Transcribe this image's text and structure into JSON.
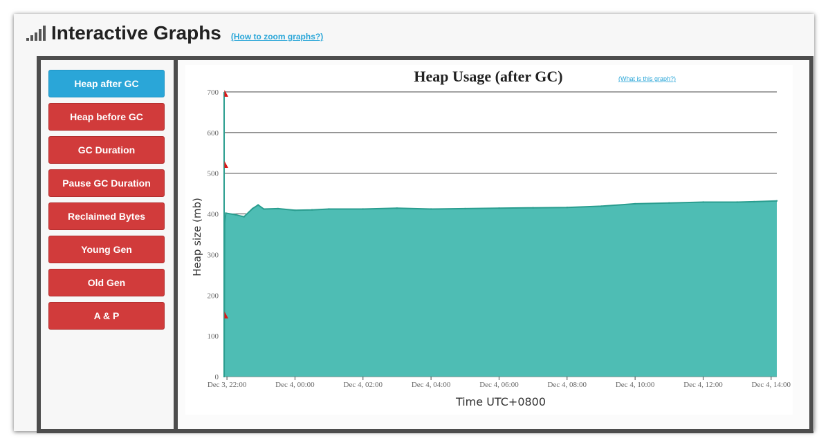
{
  "header": {
    "title": "Interactive Graphs",
    "zoom_help": "(How to zoom graphs?)"
  },
  "sidebar": {
    "items": [
      {
        "label": "Heap after GC",
        "active": true
      },
      {
        "label": "Heap before GC",
        "active": false
      },
      {
        "label": "GC Duration",
        "active": false
      },
      {
        "label": "Pause GC Duration",
        "active": false
      },
      {
        "label": "Reclaimed Bytes",
        "active": false
      },
      {
        "label": "Young Gen",
        "active": false
      },
      {
        "label": "Old Gen",
        "active": false
      },
      {
        "label": "A & P",
        "active": false
      }
    ]
  },
  "colors": {
    "active_button": "#2aa6d8",
    "button": "#d13b3b",
    "area_fill": "#4ebdb4",
    "area_line": "#2a9d8f",
    "marker": "#e01515"
  },
  "chart_data": {
    "type": "area",
    "title": "Heap Usage (after GC)",
    "help_link": "(What is this graph?)",
    "xlabel": "Time UTC+0800",
    "ylabel": "Heap size (mb)",
    "ylim": [
      0,
      700
    ],
    "yticks": [
      0,
      100,
      200,
      300,
      400,
      500,
      600,
      700
    ],
    "xlim": [
      "Dec 3, 21:55",
      "Dec 4, 14:10"
    ],
    "xticks": [
      "Dec 3, 22:00",
      "Dec 4, 00:00",
      "Dec 4, 02:00",
      "Dec 4, 04:00",
      "Dec 4, 06:00",
      "Dec 4, 08:00",
      "Dec 4, 10:00",
      "Dec 4, 12:00",
      "Dec 4, 14:00"
    ],
    "grid": true,
    "x": [
      "Dec 3, 21:55",
      "Dec 3, 21:56",
      "Dec 3, 21:58",
      "Dec 3, 22:15",
      "Dec 3, 22:30",
      "Dec 3, 22:45",
      "Dec 3, 22:55",
      "Dec 3, 23:05",
      "Dec 3, 23:30",
      "Dec 4, 00:00",
      "Dec 4, 00:30",
      "Dec 4, 01:00",
      "Dec 4, 02:00",
      "Dec 4, 03:00",
      "Dec 4, 04:00",
      "Dec 4, 05:00",
      "Dec 4, 06:00",
      "Dec 4, 07:00",
      "Dec 4, 08:00",
      "Dec 4, 09:00",
      "Dec 4, 10:00",
      "Dec 4, 11:00",
      "Dec 4, 12:00",
      "Dec 4, 13:00",
      "Dec 4, 13:30",
      "Dec 4, 14:10"
    ],
    "values": [
      0,
      380,
      402,
      398,
      393,
      413,
      422,
      412,
      413,
      409,
      410,
      412,
      412,
      414,
      412,
      413,
      414,
      415,
      416,
      419,
      425,
      427,
      429,
      429,
      430,
      432
    ],
    "markers": [
      150,
      520,
      695
    ]
  }
}
